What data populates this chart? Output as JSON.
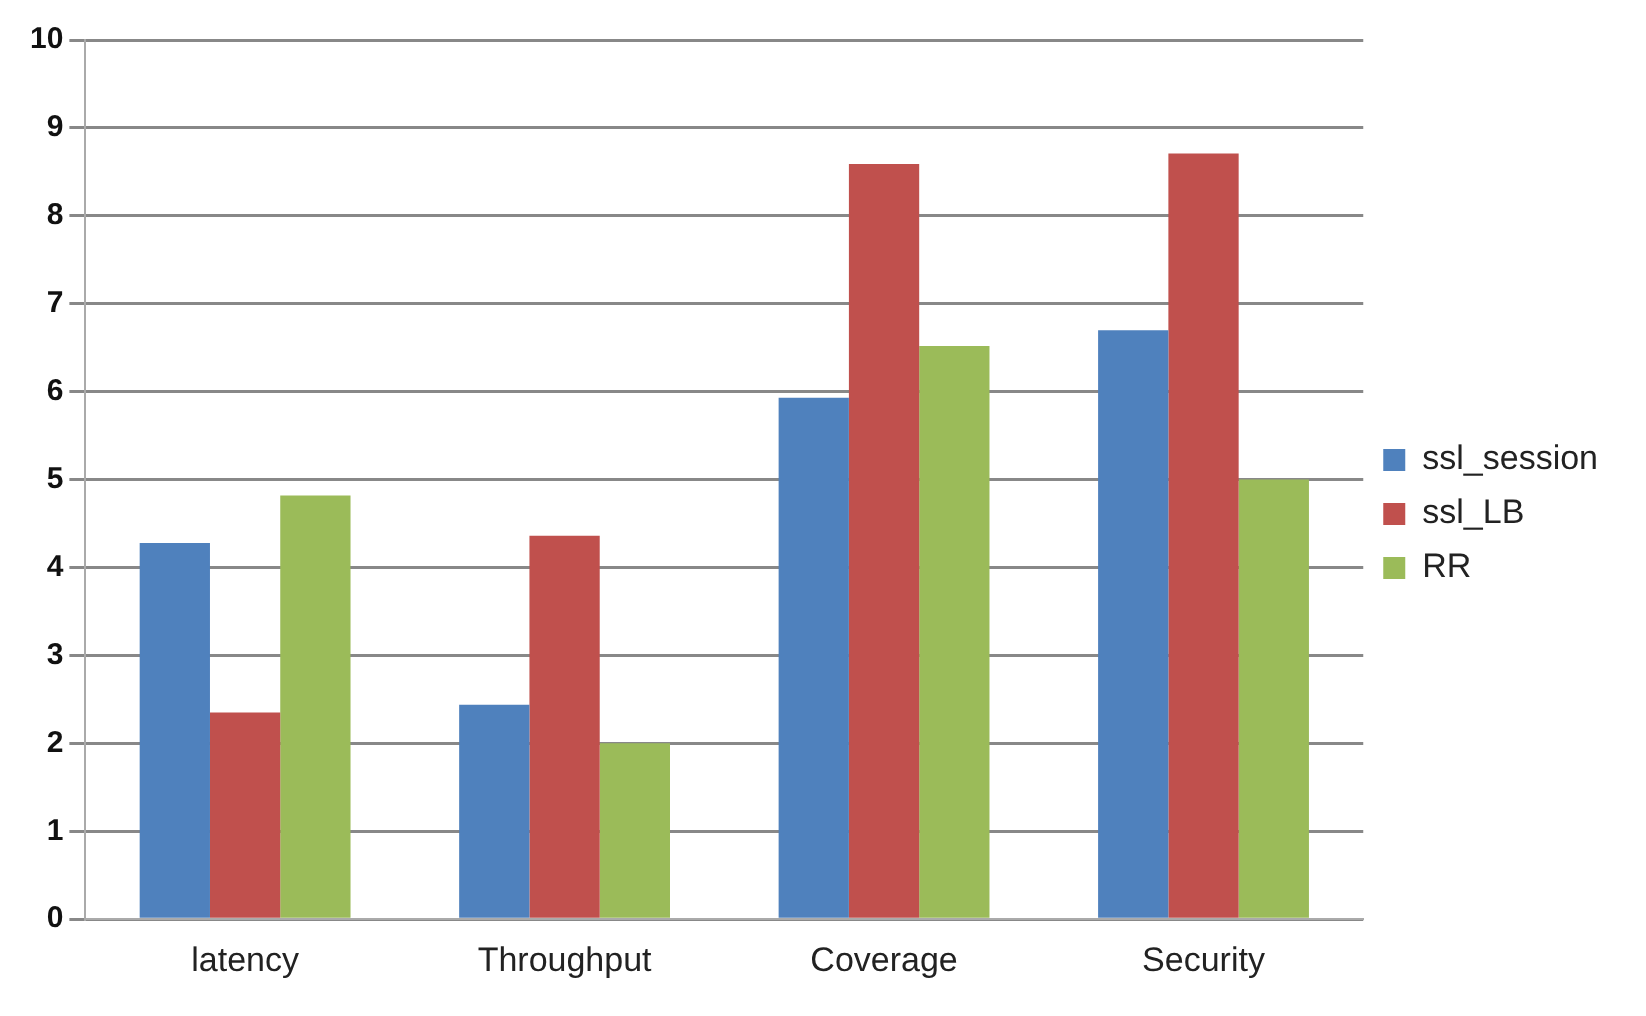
{
  "chart_data": {
    "type": "bar",
    "categories": [
      "latency",
      "Throughput",
      "Coverage",
      "Security"
    ],
    "series": [
      {
        "name": "ssl_session",
        "color": "#4f81bd",
        "values": [
          4.28,
          2.44,
          5.93,
          6.7
        ]
      },
      {
        "name": "ssl_LB",
        "color": "#c0504d",
        "values": [
          2.35,
          4.36,
          8.59,
          8.71
        ]
      },
      {
        "name": "RR",
        "color": "#9bbb59",
        "values": [
          4.82,
          2.0,
          6.52,
          5.0
        ]
      }
    ],
    "ylim": [
      0,
      10
    ],
    "yticks": [
      0,
      1,
      2,
      3,
      4,
      5,
      6,
      7,
      8,
      9,
      10
    ],
    "grid": "y",
    "legend": "right"
  }
}
